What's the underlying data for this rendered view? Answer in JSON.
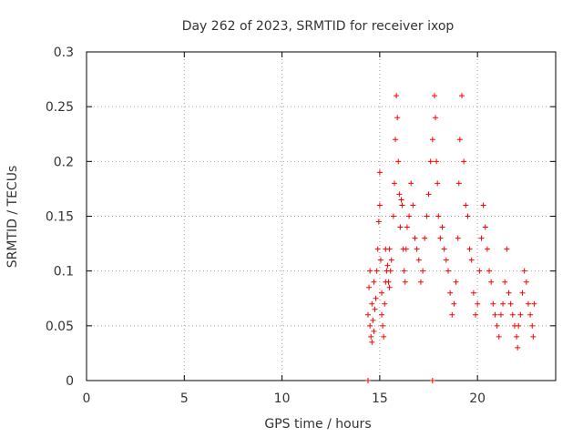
{
  "chart_data": {
    "type": "scatter",
    "title": "Day 262 of 2023, SRMTID for receiver ixop",
    "xlabel": "GPS time / hours",
    "ylabel": "SRMTID / TECUs",
    "xlim": [
      0,
      24
    ],
    "ylim": [
      0,
      0.3
    ],
    "xticks": [
      0,
      5,
      10,
      15,
      20
    ],
    "xtick_labels": [
      "0",
      "5",
      "10",
      "15",
      "20"
    ],
    "yticks": [
      0,
      0.05,
      0.1,
      0.15,
      0.2,
      0.25,
      0.3
    ],
    "ytick_labels": [
      "0",
      "0.05",
      "0.1",
      "0.15",
      "0.2",
      "0.25",
      "0.3"
    ],
    "grid": true,
    "marker": "+",
    "series": [
      {
        "name": "SRMTID",
        "color": "#ff0000",
        "x": [
          14.4,
          14.45,
          14.5,
          14.5,
          14.55,
          14.6,
          14.6,
          14.65,
          14.7,
          14.7,
          14.75,
          14.8,
          14.85,
          14.9,
          14.95,
          15.0,
          15.0,
          15.05,
          15.1,
          15.1,
          15.15,
          15.2,
          15.25,
          15.3,
          15.3,
          15.35,
          15.4,
          15.45,
          15.5,
          15.5,
          15.55,
          15.6,
          15.7,
          15.75,
          15.8,
          15.85,
          15.9,
          15.95,
          16.0,
          16.05,
          16.1,
          16.15,
          16.2,
          16.25,
          16.3,
          16.35,
          16.4,
          16.5,
          16.6,
          16.7,
          16.8,
          16.9,
          17.0,
          17.1,
          17.2,
          17.3,
          17.4,
          17.5,
          17.6,
          17.7,
          17.8,
          17.85,
          17.9,
          17.95,
          18.0,
          18.1,
          18.2,
          18.3,
          18.4,
          18.5,
          18.6,
          18.7,
          18.8,
          18.9,
          19.0,
          19.05,
          19.1,
          19.2,
          19.3,
          19.4,
          19.5,
          19.6,
          19.7,
          19.8,
          19.9,
          20.0,
          20.1,
          20.2,
          20.3,
          20.4,
          20.5,
          20.6,
          20.7,
          20.8,
          20.9,
          21.0,
          21.1,
          21.2,
          21.3,
          21.4,
          21.5,
          21.6,
          21.7,
          21.8,
          21.9,
          22.0,
          22.05,
          22.1,
          22.2,
          22.3,
          22.4,
          22.5,
          22.6,
          22.7,
          22.8,
          22.85,
          22.9,
          14.4,
          17.7
        ],
        "y": [
          0.06,
          0.085,
          0.1,
          0.05,
          0.04,
          0.07,
          0.035,
          0.055,
          0.09,
          0.045,
          0.065,
          0.075,
          0.1,
          0.12,
          0.145,
          0.19,
          0.16,
          0.11,
          0.08,
          0.06,
          0.05,
          0.04,
          0.07,
          0.09,
          0.12,
          0.1,
          0.105,
          0.09,
          0.12,
          0.085,
          0.1,
          0.11,
          0.15,
          0.18,
          0.22,
          0.26,
          0.24,
          0.2,
          0.17,
          0.14,
          0.165,
          0.16,
          0.12,
          0.1,
          0.09,
          0.12,
          0.14,
          0.15,
          0.18,
          0.16,
          0.13,
          0.12,
          0.11,
          0.09,
          0.1,
          0.13,
          0.15,
          0.17,
          0.2,
          0.22,
          0.26,
          0.24,
          0.2,
          0.18,
          0.15,
          0.13,
          0.14,
          0.12,
          0.11,
          0.1,
          0.08,
          0.06,
          0.07,
          0.09,
          0.13,
          0.18,
          0.22,
          0.26,
          0.2,
          0.16,
          0.15,
          0.12,
          0.11,
          0.08,
          0.06,
          0.07,
          0.1,
          0.13,
          0.16,
          0.14,
          0.12,
          0.1,
          0.09,
          0.07,
          0.06,
          0.05,
          0.04,
          0.06,
          0.07,
          0.09,
          0.12,
          0.08,
          0.07,
          0.06,
          0.05,
          0.04,
          0.03,
          0.05,
          0.06,
          0.08,
          0.1,
          0.09,
          0.07,
          0.06,
          0.05,
          0.04,
          0.07,
          0.0,
          0.0
        ]
      }
    ]
  }
}
